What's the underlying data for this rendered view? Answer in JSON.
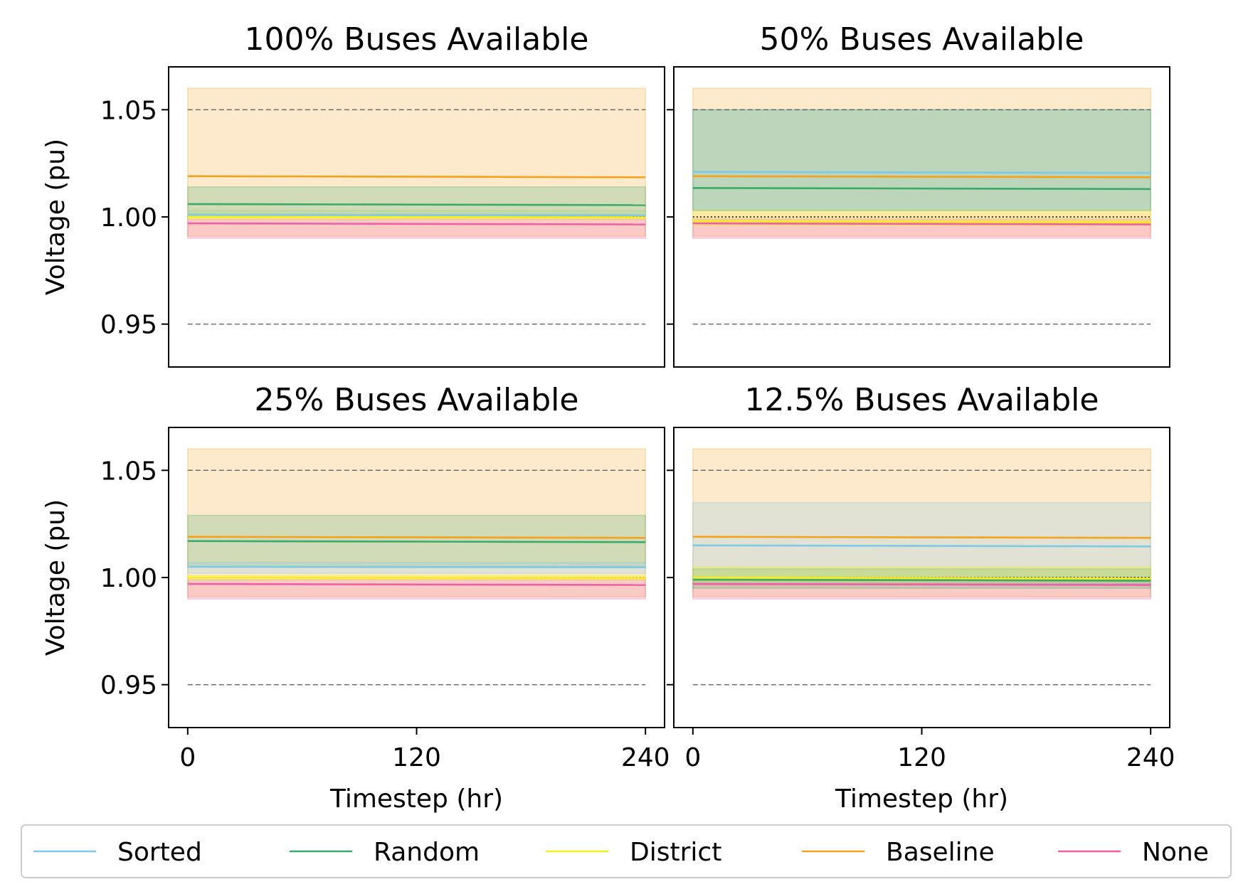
{
  "chart_data": {
    "type": "line",
    "layout": "2x2",
    "xlabel": "Timestep (hr)",
    "ylabel": "Voltage (pu)",
    "xlim": [
      -10,
      250
    ],
    "ylim": [
      0.93,
      1.07
    ],
    "xticks": [
      0,
      120,
      240
    ],
    "xtick_labels": [
      "0",
      "120",
      "240"
    ],
    "yticks": [
      0.95,
      1.0,
      1.05
    ],
    "ytick_labels": [
      "0.95",
      "1.00",
      "1.05"
    ],
    "reference_lines": [
      {
        "y": 1.05,
        "style": "dashed",
        "color": "#555555"
      },
      {
        "y": 0.95,
        "style": "dashed",
        "color": "#555555"
      },
      {
        "y": 1.0,
        "style": "dotted",
        "color": "#000000"
      }
    ],
    "x": [
      0,
      240
    ],
    "legend": {
      "placement": "bottom",
      "entries": [
        {
          "label": "Sorted",
          "color": "#7ec8e8"
        },
        {
          "label": "Random",
          "color": "#3aaa6a"
        },
        {
          "label": "District",
          "color": "#f5ee1a"
        },
        {
          "label": "Baseline",
          "color": "#f4a11c"
        },
        {
          "label": "None",
          "color": "#ee5fa6"
        }
      ]
    },
    "panels": [
      {
        "title": "100% Buses Available",
        "series": [
          {
            "name": "Baseline",
            "color": "#f4a11c",
            "mean": [
              1.019,
              1.0185
            ],
            "band": [
              0.991,
              1.06
            ]
          },
          {
            "name": "None",
            "color": "#ee5fa6",
            "mean": [
              0.997,
              0.9965
            ],
            "band": [
              0.99,
              0.999
            ]
          },
          {
            "name": "Random",
            "color": "#3aaa6a",
            "mean": [
              1.006,
              1.0055
            ],
            "band": [
              1.0,
              1.014
            ]
          },
          {
            "name": "District",
            "color": "#f5ee1a",
            "mean": [
              1.0,
              0.9998
            ],
            "band": [
              0.999,
              1.003
            ]
          },
          {
            "name": "Sorted",
            "color": "#7ec8e8",
            "mean": [
              1.001,
              1.0008
            ],
            "band": [
              1.0,
              1.003
            ]
          }
        ]
      },
      {
        "title": "50% Buses Available",
        "series": [
          {
            "name": "Baseline",
            "color": "#f4a11c",
            "mean": [
              1.019,
              1.0185
            ],
            "band": [
              0.991,
              1.06
            ]
          },
          {
            "name": "None",
            "color": "#ee5fa6",
            "mean": [
              0.997,
              0.9965
            ],
            "band": [
              0.99,
              0.999
            ]
          },
          {
            "name": "Sorted",
            "color": "#7ec8e8",
            "mean": [
              1.021,
              1.0205
            ],
            "band": [
              1.003,
              1.05
            ]
          },
          {
            "name": "Random",
            "color": "#3aaa6a",
            "mean": [
              1.0135,
              1.013
            ],
            "band": [
              1.003,
              1.05
            ]
          },
          {
            "name": "District",
            "color": "#f5ee1a",
            "mean": [
              0.998,
              0.9975
            ],
            "band": [
              0.996,
              1.003
            ]
          }
        ]
      },
      {
        "title": "25% Buses Available",
        "series": [
          {
            "name": "Baseline",
            "color": "#f4a11c",
            "mean": [
              1.019,
              1.0185
            ],
            "band": [
              0.991,
              1.06
            ]
          },
          {
            "name": "None",
            "color": "#ee5fa6",
            "mean": [
              0.997,
              0.9965
            ],
            "band": [
              0.99,
              0.999
            ]
          },
          {
            "name": "Random",
            "color": "#3aaa6a",
            "mean": [
              1.017,
              1.0165
            ],
            "band": [
              1.005,
              1.029
            ]
          },
          {
            "name": "Sorted",
            "color": "#7ec8e8",
            "mean": [
              1.005,
              1.0048
            ],
            "band": [
              1.002,
              1.007
            ]
          },
          {
            "name": "District",
            "color": "#f5ee1a",
            "mean": [
              1.0,
              0.9998
            ],
            "band": [
              0.999,
              1.001
            ]
          }
        ]
      },
      {
        "title": "12.5% Buses Available",
        "series": [
          {
            "name": "Baseline",
            "color": "#f4a11c",
            "mean": [
              1.019,
              1.0185
            ],
            "band": [
              0.991,
              1.06
            ]
          },
          {
            "name": "Sorted",
            "color": "#7ec8e8",
            "mean": [
              1.015,
              1.0145
            ],
            "band": [
              0.997,
              1.035
            ]
          },
          {
            "name": "None",
            "color": "#ee5fa6",
            "mean": [
              0.997,
              0.9965
            ],
            "band": [
              0.99,
              0.999
            ]
          },
          {
            "name": "Random",
            "color": "#3aaa6a",
            "mean": [
              0.999,
              0.9985
            ],
            "band": [
              0.995,
              1.004
            ]
          },
          {
            "name": "District",
            "color": "#f5ee1a",
            "mean": [
              1.0,
              0.9995
            ],
            "band": [
              0.998,
              1.005
            ]
          }
        ]
      }
    ]
  }
}
